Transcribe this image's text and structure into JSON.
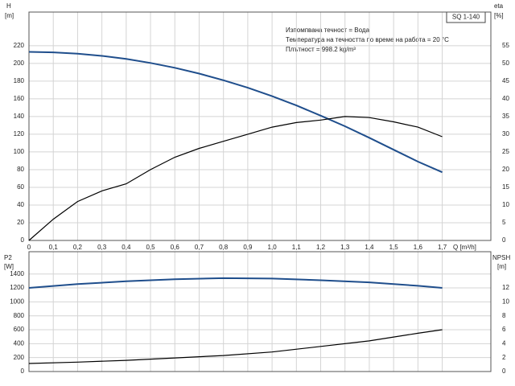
{
  "chart_data": [
    {
      "type": "line",
      "title": "SQ 1-140",
      "annotations": [
        "Изпомпвана течност = Вода",
        "Температура на течността по време на работа = 20 °C",
        "Плътност = 998.2 kg/m³"
      ],
      "y_label": "H",
      "y_unit": "[m]",
      "y2_label": "eta",
      "y2_unit": "[%]",
      "x_label": "Q [m³/h]",
      "x": [
        0,
        0.1,
        0.2,
        0.3,
        0.4,
        0.5,
        0.6,
        0.7,
        0.8,
        0.9,
        1.0,
        1.1,
        1.2,
        1.3,
        1.4,
        1.5,
        1.6,
        1.7
      ],
      "series": [
        {
          "name": "H",
          "color": "#1f4e8c",
          "values": [
            213,
            212.5,
            211,
            208.5,
            205,
            200.5,
            195,
            188.5,
            181,
            172.5,
            163,
            152.5,
            141,
            129,
            116,
            102.5,
            89,
            77
          ]
        },
        {
          "name": "eta",
          "color": "#000000",
          "axis": "y2",
          "values": [
            0,
            6,
            11,
            14,
            16,
            20,
            23.5,
            26,
            28,
            30,
            32,
            33.3,
            34,
            35,
            34.7,
            33.5,
            32,
            29.3
          ]
        }
      ],
      "xlim": [
        0,
        1.9
      ],
      "xticks": [
        0,
        {
          "value": 0.1,
          "label": "0,1"
        },
        {
          "value": 0.2,
          "label": "0,2"
        },
        {
          "value": 0.3,
          "label": "0,3"
        },
        {
          "value": 0.4,
          "label": "0,4"
        },
        {
          "value": 0.5,
          "label": "0,5"
        },
        {
          "value": 0.6,
          "label": "0,6"
        },
        {
          "value": 0.7,
          "label": "0,7"
        },
        {
          "value": 0.8,
          "label": "0,8"
        },
        {
          "value": 0.9,
          "label": "0,9"
        },
        {
          "value": 1.0,
          "label": "1,0"
        },
        {
          "value": 1.1,
          "label": "1,1"
        },
        {
          "value": 1.2,
          "label": "1,2"
        },
        {
          "value": 1.3,
          "label": "1,3"
        },
        {
          "value": 1.4,
          "label": "1,4"
        },
        {
          "value": 1.5,
          "label": "1,5"
        },
        {
          "value": 1.6,
          "label": "1,6"
        },
        {
          "value": 1.7,
          "label": "1,7"
        }
      ],
      "ylim": [
        0,
        258
      ],
      "yticks": [
        0,
        20,
        40,
        60,
        80,
        100,
        120,
        140,
        160,
        180,
        200,
        220
      ],
      "y2lim": [
        0,
        64.5
      ],
      "y2ticks": [
        0,
        5,
        10,
        15,
        20,
        25,
        30,
        35,
        40,
        45,
        50,
        55
      ],
      "grid": true
    },
    {
      "type": "line",
      "y_label": "P2",
      "y_unit": "[W]",
      "y2_label": "NPSH",
      "y2_unit": "[m]",
      "x": [
        0,
        0.2,
        0.4,
        0.6,
        0.8,
        1.0,
        1.2,
        1.4,
        1.6,
        1.7
      ],
      "series": [
        {
          "name": "P2",
          "color": "#1f4e8c",
          "values": [
            1200,
            1255,
            1295,
            1325,
            1340,
            1335,
            1310,
            1280,
            1230,
            1200
          ]
        },
        {
          "name": "NPSH",
          "color": "#000000",
          "axis": "y2",
          "values": [
            1.15,
            1.35,
            1.6,
            1.95,
            2.3,
            2.8,
            3.6,
            4.4,
            5.5,
            6.0
          ]
        }
      ],
      "xlim": [
        0,
        1.9
      ],
      "ylim": [
        0,
        1720
      ],
      "yticks": [
        0,
        200,
        400,
        600,
        800,
        1000,
        1200,
        1400
      ],
      "y2lim": [
        0,
        17.2
      ],
      "y2ticks": [
        0,
        2,
        4,
        6,
        8,
        10,
        12
      ],
      "grid": true
    }
  ]
}
